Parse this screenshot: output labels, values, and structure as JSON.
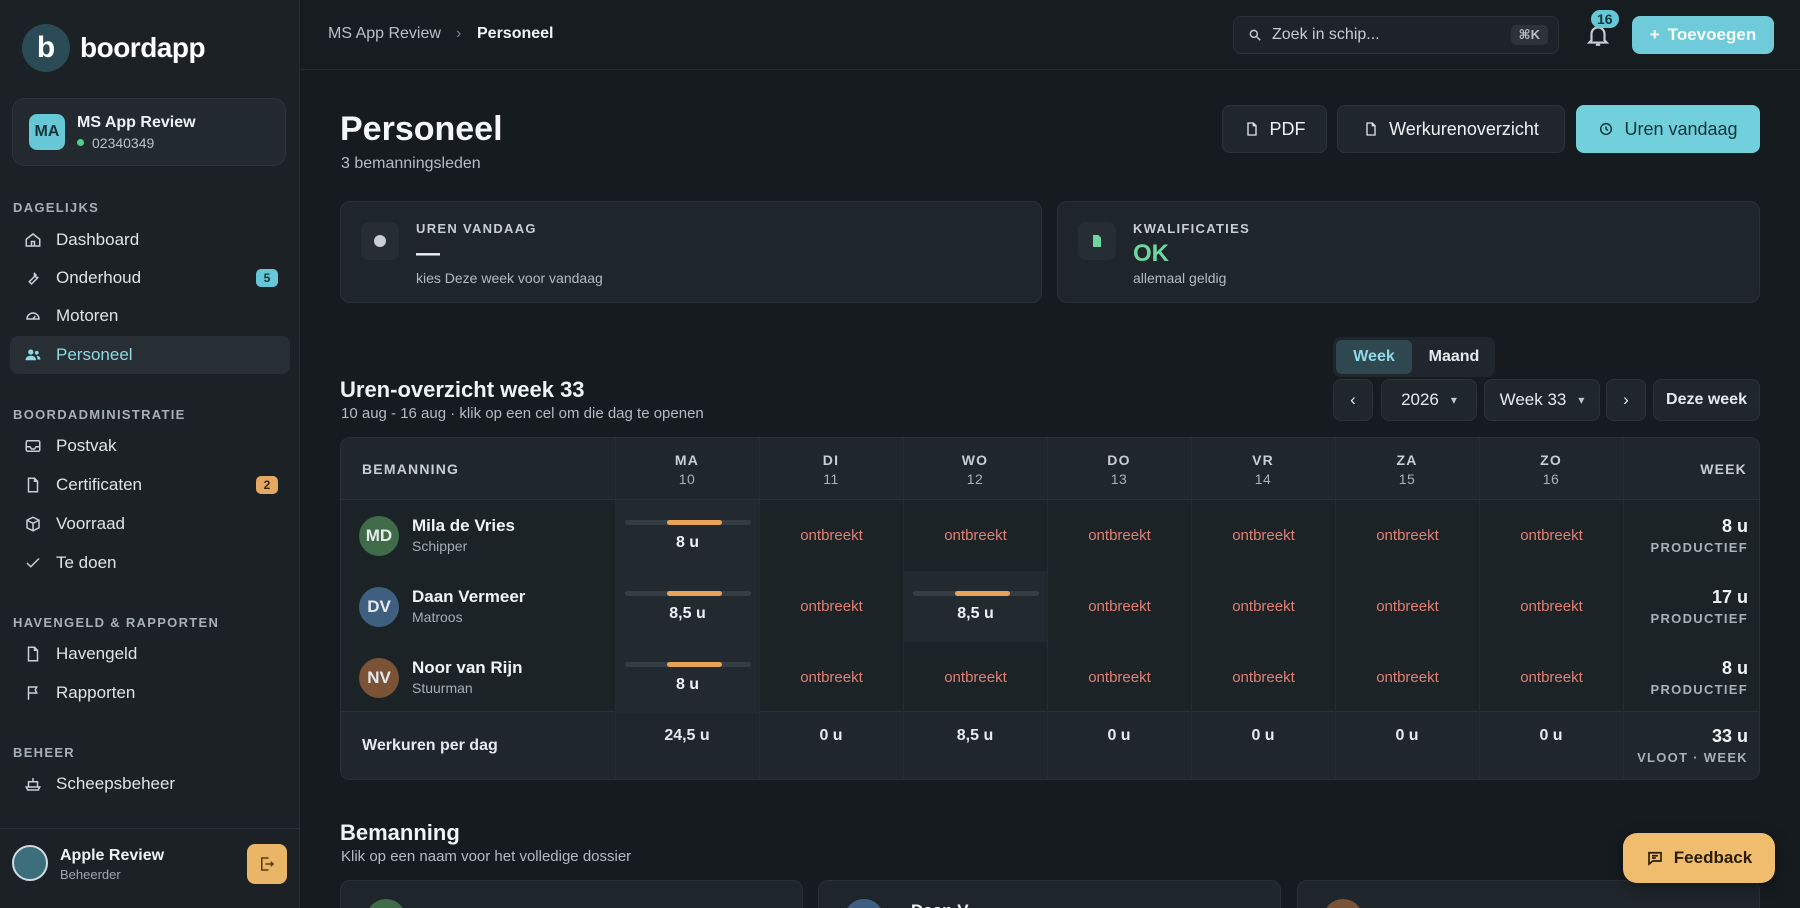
{
  "app": {
    "logo_letter": "b",
    "name": "boordapp"
  },
  "vessel": {
    "initials": "MA",
    "name": "MS App Review",
    "id": "02340349"
  },
  "sidebar": {
    "sections": [
      {
        "title": "DAGELIJKS"
      },
      {
        "title": "BOORDADMINISTRATIE"
      },
      {
        "title": "HAVENGELD & RAPPORTEN"
      },
      {
        "title": "BEHEER"
      }
    ],
    "items": [
      {
        "label": "Dashboard",
        "icon": "home-icon"
      },
      {
        "label": "Onderhoud",
        "icon": "wrench-icon",
        "badge": "5"
      },
      {
        "label": "Motoren",
        "icon": "gauge-icon"
      },
      {
        "label": "Personeel",
        "icon": "users-icon",
        "active": true
      },
      {
        "label": "Postvak",
        "icon": "inbox-icon"
      },
      {
        "label": "Certificaten",
        "icon": "file-icon",
        "badge": "2"
      },
      {
        "label": "Voorraad",
        "icon": "box-icon"
      },
      {
        "label": "Te doen",
        "icon": "check-icon"
      },
      {
        "label": "Havengeld",
        "icon": "file-icon"
      },
      {
        "label": "Rapporten",
        "icon": "flag-icon"
      },
      {
        "label": "Scheepsbeheer",
        "icon": "ship-icon"
      }
    ]
  },
  "user": {
    "name": "Apple Review",
    "role": "Beheerder"
  },
  "topbar": {
    "breadcrumb": [
      "MS App Review",
      "Personeel"
    ],
    "search_placeholder": "Zoek in schip...",
    "search_shortcut": "⌘K",
    "notification_count": "16",
    "add_label": "Toevoegen"
  },
  "page": {
    "title": "Personeel",
    "subtitle": "3 bemanningsleden",
    "buttons": {
      "pdf": "PDF",
      "overview": "Werkurenoverzicht",
      "today": "Uren vandaag"
    }
  },
  "stats": {
    "hours_today": {
      "label": "UREN VANDAAG",
      "value": "—",
      "desc": "kies Deze week voor vandaag"
    },
    "qualifications": {
      "label": "KWALIFICATIES",
      "value": "OK",
      "desc": "allemaal geldig"
    }
  },
  "overview": {
    "toggle": {
      "week": "Week",
      "month": "Maand"
    },
    "title": "Uren-overzicht week 33",
    "subtitle": "10 aug - 16 aug · klik op een cel om die dag te openen",
    "year": "2026",
    "week": "Week 33",
    "this_week": "Deze week",
    "columns": {
      "crew": "BEMANNING",
      "week": "WEEK",
      "days": [
        {
          "name": "MA",
          "date": "10"
        },
        {
          "name": "DI",
          "date": "11"
        },
        {
          "name": "WO",
          "date": "12"
        },
        {
          "name": "DO",
          "date": "13"
        },
        {
          "name": "VR",
          "date": "14"
        },
        {
          "name": "ZA",
          "date": "15"
        },
        {
          "name": "ZO",
          "date": "16"
        }
      ]
    },
    "missing_label": "ontbreekt",
    "rows": [
      {
        "initials": "MD",
        "name": "Mila de Vries",
        "role": "Schipper",
        "avatar_color": "#3f6b48",
        "days": [
          "8 u",
          null,
          null,
          null,
          null,
          null,
          null
        ],
        "fill": [
          0.44,
          0,
          0,
          0,
          0,
          0,
          0
        ],
        "week_total": "8 u",
        "week_label": "PRODUCTIEF"
      },
      {
        "initials": "DV",
        "name": "Daan Vermeer",
        "role": "Matroos",
        "avatar_color": "#3e5f80",
        "days": [
          "8,5 u",
          null,
          "8,5 u",
          null,
          null,
          null,
          null
        ],
        "fill": [
          0.44,
          0,
          0.44,
          0,
          0,
          0,
          0
        ],
        "week_total": "17 u",
        "week_label": "PRODUCTIEF"
      },
      {
        "initials": "NV",
        "name": "Noor van Rijn",
        "role": "Stuurman",
        "avatar_color": "#7a5236",
        "days": [
          "8 u",
          null,
          null,
          null,
          null,
          null,
          null
        ],
        "fill": [
          0.44,
          0,
          0,
          0,
          0,
          0,
          0
        ],
        "week_total": "8 u",
        "week_label": "PRODUCTIEF"
      }
    ],
    "totals": {
      "label": "Werkuren per dag",
      "days": [
        "24,5 u",
        "0 u",
        "8,5 u",
        "0 u",
        "0 u",
        "0 u",
        "0 u"
      ],
      "week_total": "33 u",
      "week_label": "VLOOT · WEEK"
    }
  },
  "crew": {
    "title": "Bemanning",
    "subtitle": "Klik op een naam voor het volledige dossier",
    "cards": [
      {
        "name": "",
        "avatar_color": "#3f6b48"
      },
      {
        "name": "Daan V",
        "avatar_color": "#3e5f80"
      },
      {
        "name": "",
        "avatar_color": "#7a5236"
      }
    ]
  },
  "feedback_label": "Feedback"
}
